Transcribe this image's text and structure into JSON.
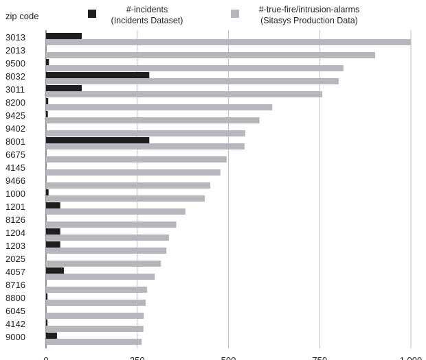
{
  "chart_data": {
    "type": "bar",
    "orientation": "horizontal",
    "category_header": "zip code",
    "categories": [
      "3013",
      "2013",
      "9500",
      "8032",
      "3011",
      "8200",
      "9425",
      "9402",
      "8001",
      "6675",
      "4145",
      "9466",
      "1000",
      "1201",
      "8126",
      "1204",
      "1203",
      "2025",
      "4057",
      "8716",
      "8800",
      "6045",
      "4142",
      "9000"
    ],
    "series": [
      {
        "name": "#-incidents\n(Incidents Dataset)",
        "color": "#1f1f1f",
        "values": [
          98,
          0,
          8,
          283,
          98,
          6,
          5,
          0,
          283,
          0,
          0,
          0,
          7,
          39,
          0,
          39,
          39,
          0,
          49,
          0,
          4,
          0,
          4,
          30
        ]
      },
      {
        "name": "#-true-fire/intrusion-alarms\n(Sitasys Production Data)",
        "color": "#b6b6bc",
        "values": [
          1000,
          902,
          815,
          802,
          757,
          620,
          585,
          546,
          544,
          495,
          478,
          450,
          435,
          382,
          357,
          337,
          330,
          315,
          298,
          277,
          273,
          268,
          267,
          262
        ]
      }
    ],
    "x_ticks": [
      "0",
      "250",
      "500",
      "750",
      "1,000"
    ],
    "xlim": [
      0,
      1000
    ],
    "grid": true,
    "legend_position": "top"
  }
}
